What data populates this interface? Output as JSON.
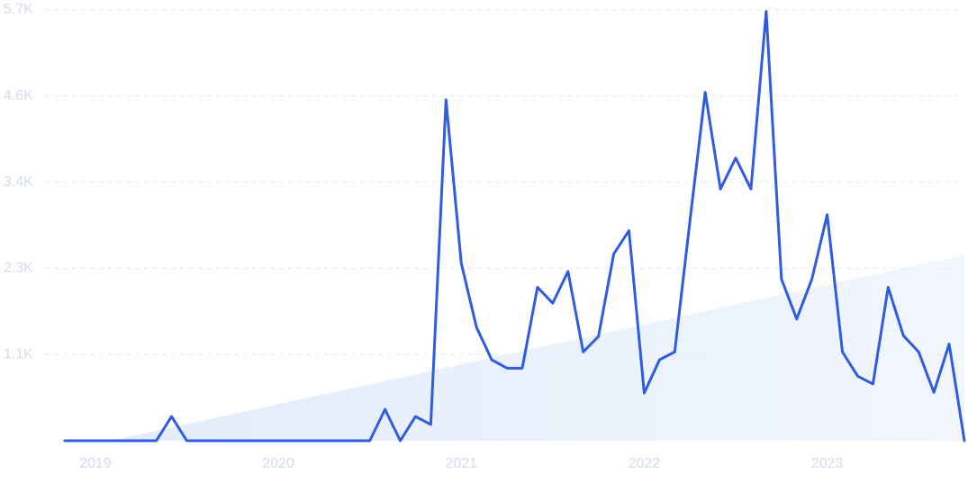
{
  "chart_data": {
    "type": "line",
    "categories": [
      null,
      null,
      "2019",
      null,
      null,
      null,
      null,
      null,
      null,
      null,
      null,
      null,
      null,
      null,
      "2020",
      null,
      null,
      null,
      null,
      null,
      null,
      null,
      null,
      null,
      null,
      null,
      "2021",
      null,
      null,
      null,
      null,
      null,
      null,
      null,
      null,
      null,
      null,
      null,
      "2022",
      null,
      null,
      null,
      null,
      null,
      null,
      null,
      null,
      null,
      null,
      null,
      "2023",
      null,
      null,
      null,
      null,
      null,
      null,
      null,
      null,
      null
    ],
    "series": [
      {
        "color": "#2f5ce0",
        "values": [
          0,
          0,
          0,
          0,
          0,
          0,
          0,
          320,
          0,
          0,
          0,
          0,
          0,
          0,
          0,
          0,
          0,
          0,
          0,
          0,
          0,
          415,
          0,
          320,
          215,
          4510,
          2350,
          1500,
          1070,
          960,
          960,
          2030,
          1820,
          2240,
          1175,
          1380,
          2470,
          2780,
          630,
          1070,
          1175,
          2910,
          4610,
          3330,
          3740,
          3330,
          5680,
          2140,
          1610,
          2140,
          2990,
          1175,
          855,
          750,
          2030,
          1390,
          1175,
          640,
          1280,
          0
        ]
      },
      {
        "color": "#dce8fb",
        "fill": true,
        "values": [
          null,
          null,
          null,
          0,
          44,
          88,
          132,
          176,
          220,
          264,
          308,
          351,
          395,
          439,
          483,
          527,
          571,
          615,
          659,
          703,
          747,
          791,
          835,
          879,
          923,
          966,
          1010,
          1054,
          1098,
          1142,
          1186,
          1230,
          1274,
          1318,
          1362,
          1406,
          1450,
          1494,
          1538,
          1581,
          1625,
          1669,
          1713,
          1757,
          1801,
          1845,
          1889,
          1933,
          1977,
          2021,
          2065,
          2109,
          2153,
          2196,
          2240,
          2284,
          2328,
          2372,
          2416,
          2460
        ]
      }
    ],
    "ylim": [
      0,
      5700
    ],
    "yticks": [
      {
        "value": 1140,
        "label": "1.1K"
      },
      {
        "value": 2280,
        "label": "2.3K"
      },
      {
        "value": 3420,
        "label": "3.4K"
      },
      {
        "value": 4560,
        "label": "4.6K"
      },
      {
        "value": 5700,
        "label": "5.7K"
      }
    ],
    "grid": true
  }
}
